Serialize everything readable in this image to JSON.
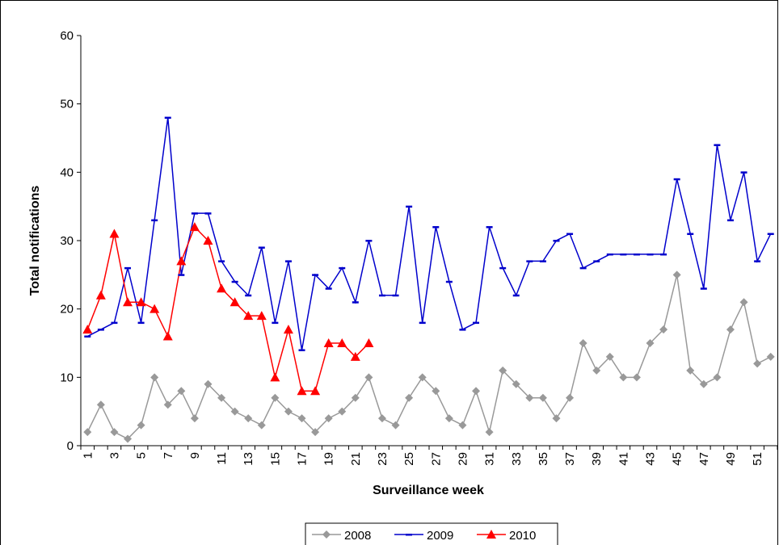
{
  "chart_data": {
    "type": "line",
    "x_label": "Surveillance week",
    "y_label": "Total notifications",
    "categories": [
      1,
      null,
      3,
      null,
      5,
      null,
      7,
      null,
      9,
      null,
      11,
      null,
      13,
      null,
      15,
      null,
      17,
      null,
      19,
      null,
      21,
      null,
      23,
      null,
      25,
      null,
      27,
      null,
      29,
      null,
      31,
      null,
      33,
      null,
      35,
      null,
      37,
      null,
      39,
      null,
      41,
      null,
      43,
      null,
      45,
      null,
      47,
      null,
      49,
      null,
      51,
      null
    ],
    "ylim": [
      0,
      60
    ],
    "yticks": [
      0,
      10,
      20,
      30,
      40,
      50,
      60
    ],
    "legend": "bottom",
    "series": [
      {
        "name": "2008",
        "color": "#999999",
        "marker": "diamond",
        "values": [
          2,
          6,
          2,
          1,
          3,
          10,
          6,
          8,
          4,
          9,
          7,
          5,
          4,
          3,
          7,
          5,
          4,
          2,
          4,
          5,
          7,
          10,
          4,
          3,
          7,
          10,
          8,
          4,
          3,
          8,
          2,
          11,
          9,
          7,
          7,
          4,
          7,
          15,
          11,
          13,
          10,
          10,
          15,
          17,
          25,
          11,
          9,
          10,
          17,
          21,
          12,
          13
        ]
      },
      {
        "name": "2009",
        "color": "#0000cc",
        "marker": "dash",
        "values": [
          16,
          17,
          18,
          26,
          18,
          33,
          48,
          25,
          34,
          34,
          27,
          24,
          22,
          29,
          18,
          27,
          14,
          25,
          23,
          26,
          21,
          30,
          22,
          22,
          35,
          18,
          32,
          24,
          17,
          18,
          32,
          26,
          22,
          27,
          27,
          30,
          31,
          26,
          27,
          28,
          28,
          28,
          28,
          28,
          39,
          31,
          23,
          44,
          33,
          40,
          27,
          31
        ]
      },
      {
        "name": "2010",
        "color": "#ff0000",
        "marker": "triangle",
        "values": [
          17,
          22,
          31,
          21,
          21,
          20,
          16,
          27,
          32,
          30,
          23,
          21,
          19,
          19,
          10,
          17,
          8,
          8,
          15,
          15,
          13,
          15,
          null,
          null,
          null,
          null,
          null,
          null,
          null,
          null,
          null,
          null,
          null,
          null,
          null,
          null,
          null,
          null,
          null,
          null,
          null,
          null,
          null,
          null,
          null,
          null,
          null,
          null,
          null,
          null,
          null,
          null
        ]
      }
    ]
  }
}
